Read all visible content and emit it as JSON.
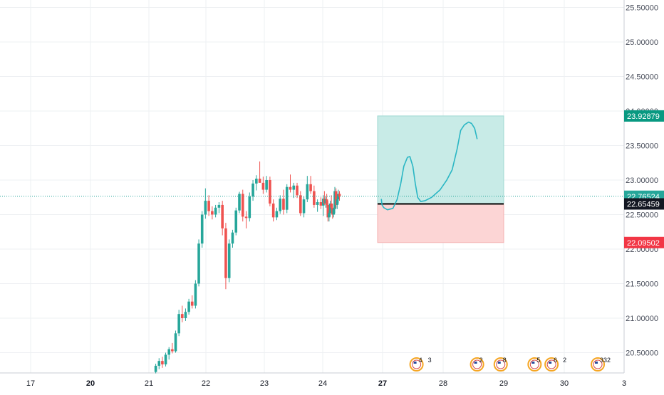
{
  "chart_data": {
    "type": "candlestick",
    "y_axis": {
      "ticks": [
        "20.50000",
        "21.00000",
        "21.50000",
        "22.00000",
        "22.50000",
        "23.00000",
        "23.50000",
        "24.00000",
        "24.50000",
        "25.00000",
        "25.50000"
      ],
      "ylim": [
        20.25,
        25.62
      ]
    },
    "x_axis": {
      "ticks": [
        "17",
        "20",
        "21",
        "22",
        "23",
        "24",
        "27",
        "28",
        "29",
        "30",
        "3"
      ],
      "bold_ticks": [
        "20",
        "27"
      ]
    },
    "current_price": "22.76524",
    "position": {
      "type": "long",
      "entry": "22.65459",
      "target": "23.92879",
      "stop": "22.09502"
    },
    "colors": {
      "up": "#26a69a",
      "down": "#ef5350",
      "profit_zone": "#c8ebe7",
      "loss_zone": "#fcd5d5",
      "target_label": "#089981",
      "stop_label": "#f23645",
      "entry_label": "#131722",
      "current_label": "#26a69a",
      "sketch": "#2ab6c4"
    },
    "candles": [
      [
        20.22,
        20.34,
        20.2,
        20.31
      ],
      [
        20.31,
        20.42,
        20.26,
        20.38
      ],
      [
        20.38,
        20.44,
        20.28,
        20.33
      ],
      [
        20.33,
        20.5,
        20.3,
        20.47
      ],
      [
        20.47,
        20.58,
        20.4,
        20.55
      ],
      [
        20.55,
        20.64,
        20.49,
        20.52
      ],
      [
        20.52,
        20.82,
        20.5,
        20.78
      ],
      [
        20.78,
        21.12,
        20.74,
        21.06
      ],
      [
        21.06,
        21.18,
        20.94,
        21.0
      ],
      [
        21.0,
        21.14,
        20.96,
        21.09
      ],
      [
        21.09,
        21.28,
        21.05,
        21.24
      ],
      [
        21.24,
        21.33,
        21.14,
        21.18
      ],
      [
        21.18,
        21.55,
        21.14,
        21.5
      ],
      [
        21.5,
        22.14,
        21.46,
        22.08
      ],
      [
        22.08,
        22.55,
        22.02,
        22.5
      ],
      [
        22.5,
        22.88,
        22.44,
        22.7
      ],
      [
        22.7,
        22.78,
        22.48,
        22.55
      ],
      [
        22.55,
        22.62,
        22.43,
        22.5
      ],
      [
        22.5,
        22.64,
        22.46,
        22.6
      ],
      [
        22.6,
        22.68,
        22.52,
        22.64
      ],
      [
        22.64,
        22.7,
        22.2,
        22.3
      ],
      [
        22.3,
        22.38,
        21.42,
        21.58
      ],
      [
        21.58,
        22.14,
        21.52,
        22.08
      ],
      [
        22.08,
        22.28,
        22.02,
        22.24
      ],
      [
        22.24,
        22.6,
        22.2,
        22.56
      ],
      [
        22.56,
        22.83,
        22.52,
        22.8
      ],
      [
        22.8,
        22.86,
        22.4,
        22.47
      ],
      [
        22.47,
        22.55,
        22.3,
        22.45
      ],
      [
        22.45,
        22.82,
        22.4,
        22.76
      ],
      [
        22.76,
        23.0,
        22.7,
        22.95
      ],
      [
        22.95,
        23.07,
        22.85,
        23.02
      ],
      [
        23.02,
        23.27,
        22.98,
        22.96
      ],
      [
        22.96,
        23.05,
        22.8,
        22.86
      ],
      [
        22.86,
        23.06,
        22.82,
        23.0
      ],
      [
        23.0,
        23.05,
        22.62,
        22.66
      ],
      [
        22.66,
        22.72,
        22.4,
        22.46
      ],
      [
        22.46,
        22.6,
        22.42,
        22.55
      ],
      [
        22.55,
        22.78,
        22.51,
        22.73
      ],
      [
        22.73,
        22.86,
        22.5,
        22.57
      ],
      [
        22.57,
        22.94,
        22.52,
        22.9
      ],
      [
        22.9,
        23.08,
        22.82,
        22.86
      ],
      [
        22.86,
        22.96,
        22.74,
        22.92
      ],
      [
        22.92,
        22.96,
        22.74,
        22.78
      ],
      [
        22.78,
        22.84,
        22.48,
        22.52
      ],
      [
        22.52,
        22.76,
        22.46,
        22.72
      ],
      [
        22.72,
        23.06,
        22.68,
        22.94
      ],
      [
        22.94,
        23.06,
        22.8,
        22.84
      ],
      [
        22.84,
        22.92,
        22.6,
        22.64
      ],
      [
        22.64,
        22.72,
        22.54,
        22.68
      ],
      [
        22.68,
        22.75,
        22.58,
        22.63
      ],
      [
        22.63,
        22.78,
        22.48,
        22.73
      ],
      [
        22.73,
        22.84,
        22.64,
        22.66
      ],
      [
        22.66,
        22.76,
        22.6,
        22.72
      ],
      [
        22.72,
        22.8,
        22.6,
        22.64
      ],
      [
        22.64,
        22.7,
        22.4,
        22.46
      ],
      [
        22.46,
        22.56,
        22.4,
        22.52
      ],
      [
        22.52,
        22.7,
        22.47,
        22.66
      ],
      [
        22.66,
        22.78,
        22.56,
        22.6
      ],
      [
        22.6,
        22.66,
        22.44,
        22.5
      ],
      [
        22.5,
        22.6,
        22.46,
        22.58
      ],
      [
        22.58,
        22.9,
        22.52,
        22.84
      ],
      [
        22.84,
        22.88,
        22.6,
        22.64
      ],
      [
        22.64,
        22.76,
        22.58,
        22.72
      ],
      [
        22.72,
        22.86,
        22.66,
        22.8
      ],
      [
        22.8,
        22.84,
        22.7,
        22.76
      ]
    ],
    "sketch_path": [
      [
        26.94,
        22.72
      ],
      [
        26.97,
        22.64
      ],
      [
        27.02,
        22.6
      ],
      [
        27.08,
        22.57
      ],
      [
        27.17,
        22.59
      ],
      [
        27.24,
        22.72
      ],
      [
        27.3,
        22.95
      ],
      [
        27.35,
        23.2
      ],
      [
        27.41,
        23.33
      ],
      [
        27.45,
        23.34
      ],
      [
        27.5,
        23.2
      ],
      [
        27.54,
        22.95
      ],
      [
        27.58,
        22.75
      ],
      [
        27.63,
        22.69
      ],
      [
        27.7,
        22.7
      ],
      [
        27.81,
        22.75
      ],
      [
        27.95,
        22.86
      ],
      [
        28.06,
        23.0
      ],
      [
        28.15,
        23.15
      ],
      [
        28.23,
        23.45
      ],
      [
        28.29,
        23.72
      ],
      [
        28.35,
        23.8
      ],
      [
        28.42,
        23.84
      ],
      [
        28.47,
        23.82
      ],
      [
        28.52,
        23.75
      ],
      [
        28.56,
        23.6
      ]
    ],
    "event_badges": [
      {
        "day": 27.56,
        "count": "4",
        "count2": "3"
      },
      {
        "day": 28.56,
        "count": "2"
      },
      {
        "day": 28.95,
        "count": "8"
      },
      {
        "day": 29.51,
        "count": "5"
      },
      {
        "day": 29.79,
        "count": "6",
        "count2": "2"
      },
      {
        "day": 30.56,
        "count": "332"
      }
    ]
  }
}
